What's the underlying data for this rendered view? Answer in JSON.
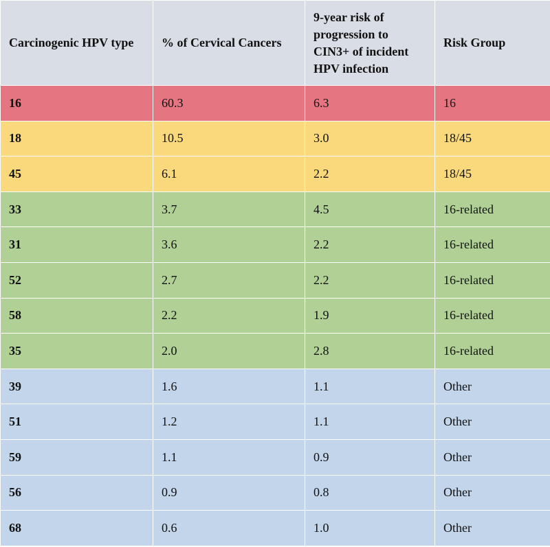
{
  "table": {
    "header": [
      "Carcinogenic HPV type",
      "% of Cervical Cancers",
      "9-year risk of progression to CIN3+ of incident HPV infection",
      "Risk Group"
    ],
    "rows": [
      [
        "16",
        "60.3",
        "6.3",
        "16"
      ],
      [
        "18",
        "10.5",
        "3.0",
        "18/45"
      ],
      [
        "45",
        "6.1",
        "2.2",
        "18/45"
      ],
      [
        "33",
        "3.7",
        "4.5",
        "16-related"
      ],
      [
        "31",
        "3.6",
        "2.2",
        "16-related"
      ],
      [
        "52",
        "2.7",
        "2.2",
        "16-related"
      ],
      [
        "58",
        "2.2",
        "1.9",
        "16-related"
      ],
      [
        "35",
        "2.0",
        "2.8",
        "16-related"
      ],
      [
        "39",
        "1.6",
        "1.1",
        "Other"
      ],
      [
        "51",
        "1.2",
        "1.1",
        "Other"
      ],
      [
        "59",
        "1.1",
        "0.9",
        "Other"
      ],
      [
        "56",
        "0.9",
        "0.8",
        "Other"
      ],
      [
        "68",
        "0.6",
        "1.0",
        "Other"
      ]
    ]
  }
}
